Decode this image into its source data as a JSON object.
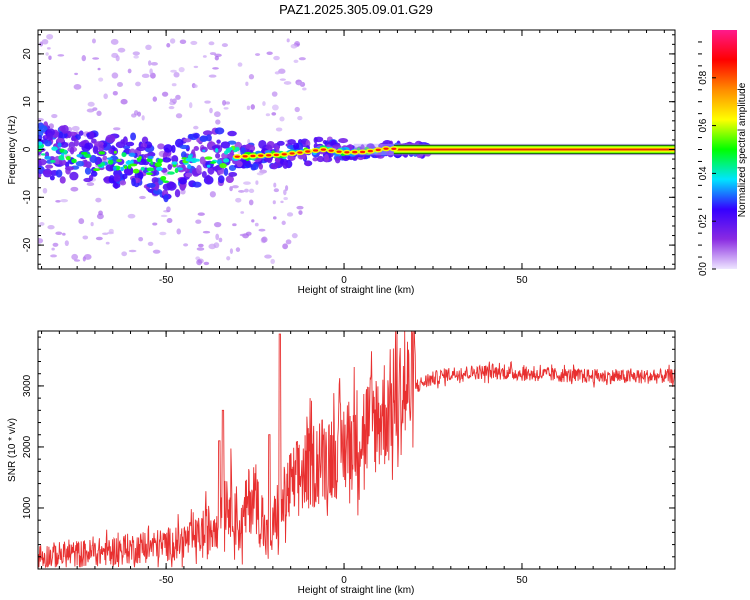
{
  "title": "PAZ1.2025.305.09.01.G29",
  "chart_data": [
    {
      "type": "heatmap",
      "name": "spectrogram",
      "xlabel": "Height of straight line (km)",
      "ylabel": "Frequency (Hz)",
      "xlim": [
        -86,
        93
      ],
      "ylim": [
        -25,
        25
      ],
      "x_ticks": [
        -50,
        0,
        50
      ],
      "y_ticks": [
        -20,
        -10,
        0,
        10,
        20
      ],
      "colorbar": {
        "label": "Normalized spectral amplitude",
        "range": [
          0.0,
          1.0
        ],
        "ticks": [
          "0.0",
          "0.2",
          "0.4",
          "0.6",
          "0.8"
        ],
        "tick_values": [
          0.0,
          0.2,
          0.4,
          0.6,
          0.8
        ],
        "stops": [
          "#eee6ff",
          "#8a2be2",
          "#3500ff",
          "#00e5ff",
          "#00ff00",
          "#ffff00",
          "#ff8c00",
          "#ff0000",
          "#ff1a8c"
        ]
      },
      "ridge": [
        {
          "x": -86,
          "y": 0.0
        },
        {
          "x": -80,
          "y": -0.8
        },
        {
          "x": -74,
          "y": -1.5
        },
        {
          "x": -68,
          "y": -2.5
        },
        {
          "x": -62,
          "y": -2.2
        },
        {
          "x": -56,
          "y": -3.0
        },
        {
          "x": -50,
          "y": -4.8
        },
        {
          "x": -46,
          "y": -3.6
        },
        {
          "x": -42,
          "y": -2.2
        },
        {
          "x": -36,
          "y": -1.6
        },
        {
          "x": -30,
          "y": -1.5
        },
        {
          "x": -24,
          "y": -1.3
        },
        {
          "x": -18,
          "y": -1.1
        },
        {
          "x": -12,
          "y": -0.6
        },
        {
          "x": -6,
          "y": 0.0
        },
        {
          "x": 0,
          "y": -0.6
        },
        {
          "x": 6,
          "y": -0.5
        },
        {
          "x": 12,
          "y": 0.2
        },
        {
          "x": 20,
          "y": 0.0
        },
        {
          "x": 93,
          "y": 0.0
        }
      ]
    },
    {
      "type": "line",
      "name": "snr",
      "xlabel": "Height of straight line (km)",
      "ylabel": "SNR (10 * v/v)",
      "xlim": [
        -86,
        93
      ],
      "ylim": [
        0,
        3900
      ],
      "x_ticks": [
        -50,
        0,
        50
      ],
      "y_ticks": [
        1000,
        2000,
        3000
      ],
      "line_color": "#e83030",
      "series": [
        {
          "name": "SNR envelope",
          "x": [
            -86,
            -80,
            -74,
            -68,
            -62,
            -56,
            -50,
            -46,
            -42,
            -38,
            -35,
            -33,
            -31,
            -29,
            -27,
            -25,
            -23,
            -21,
            -19,
            -18,
            -17,
            -15,
            -12,
            -9,
            -6,
            -3,
            0,
            3,
            6,
            9,
            12,
            16,
            20,
            25,
            30,
            35,
            40,
            45,
            50,
            60,
            70,
            80,
            93
          ],
          "y": [
            200,
            230,
            250,
            280,
            320,
            360,
            400,
            450,
            500,
            620,
            900,
            1150,
            1050,
            600,
            1100,
            1250,
            700,
            400,
            900,
            1000,
            1100,
            1350,
            1550,
            1700,
            1800,
            1900,
            2000,
            2150,
            2300,
            2450,
            2600,
            2850,
            3000,
            3120,
            3200,
            3220,
            3230,
            3220,
            3200,
            3180,
            3160,
            3150,
            3160
          ]
        }
      ],
      "spikes": [
        {
          "x": -35,
          "y": 2100
        },
        {
          "x": -34,
          "y": 2600
        },
        {
          "x": -21,
          "y": 2200
        },
        {
          "x": -18,
          "y": 3850
        }
      ]
    }
  ]
}
